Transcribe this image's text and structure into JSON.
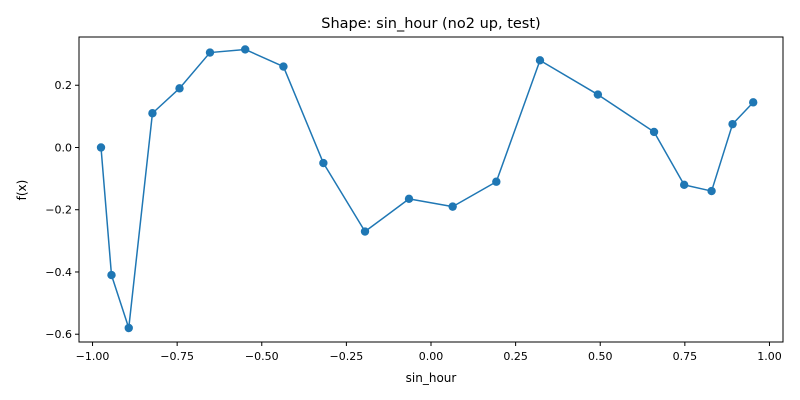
{
  "chart_data": {
    "type": "line",
    "title": "Shape: sin_hour (no2 up, test)",
    "xlabel": "sin_hour",
    "ylabel": "f(x)",
    "xlim": [
      -1.04,
      1.04
    ],
    "ylim": [
      -0.625,
      0.355
    ],
    "xticks": [
      -1.0,
      -0.75,
      -0.5,
      -0.25,
      0.0,
      0.25,
      0.5,
      0.75,
      1.0
    ],
    "xtick_labels": [
      "−1.00",
      "−0.75",
      "−0.50",
      "−0.25",
      "0.00",
      "0.25",
      "0.50",
      "0.75",
      "1.00"
    ],
    "yticks": [
      -0.6,
      -0.4,
      -0.2,
      0.0,
      0.2
    ],
    "ytick_labels": [
      "−0.6",
      "−0.4",
      "−0.2",
      "0.0",
      "0.2"
    ],
    "grid": false,
    "color": "#1f77b4",
    "series": [
      {
        "x": [
          -0.975,
          -0.944,
          -0.893,
          -0.823,
          -0.743,
          -0.653,
          -0.549,
          -0.436,
          -0.318,
          -0.195,
          -0.065,
          0.064,
          0.193,
          0.322,
          0.493,
          0.659,
          0.748,
          0.829,
          0.891,
          0.952
        ],
        "y": [
          0.0,
          -0.41,
          -0.58,
          0.11,
          0.19,
          0.305,
          0.315,
          0.26,
          -0.05,
          -0.27,
          -0.165,
          -0.19,
          -0.11,
          0.28,
          0.17,
          0.05,
          -0.12,
          -0.14,
          0.075,
          0.145
        ]
      }
    ]
  }
}
